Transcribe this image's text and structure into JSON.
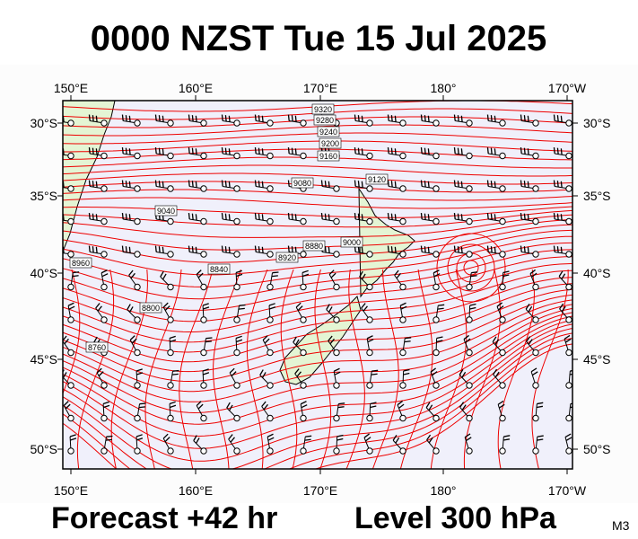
{
  "title": "0000 NZST Tue 15 Jul 2025",
  "map": {
    "top_labels": [
      "150°E",
      "160°E",
      "170°E",
      "180°",
      "170°W"
    ],
    "bottom_labels": [
      "150°E",
      "160°E",
      "170°E",
      "180°",
      "170°W"
    ],
    "left_labels": [
      "30°S",
      "35°S",
      "40°S",
      "45°S",
      "50°S"
    ],
    "right_labels": [
      "30°S",
      "35°S",
      "40°S",
      "45°S",
      "50°S"
    ],
    "contour_labels": [
      "9320",
      "9280",
      "9240",
      "9200",
      "9160",
      "9120",
      "9080",
      "9040",
      "9000",
      "8960",
      "8920",
      "8880",
      "8840",
      "8800",
      "8760"
    ]
  },
  "footer": {
    "forecast": "Forecast +42 hr",
    "level": "Level 300 hPa",
    "code": "M3"
  }
}
